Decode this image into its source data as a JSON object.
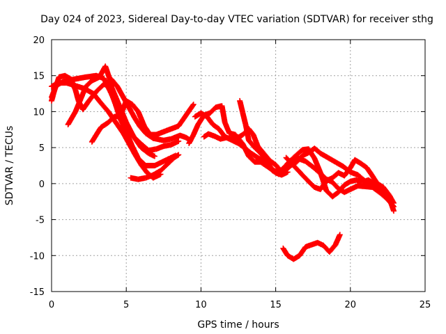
{
  "chart_data": {
    "type": "scatter",
    "title": "Day 024 of 2023, Sidereal Day-to-day VTEC variation (SDTVAR) for receiver sthg",
    "xlabel": "GPS time / hours",
    "ylabel": "SDTVAR / TECUs",
    "xlim": [
      0,
      25
    ],
    "ylim": [
      -15,
      20
    ],
    "xticks": [
      0,
      5,
      10,
      15,
      20,
      25
    ],
    "yticks": [
      -15,
      -10,
      -5,
      0,
      5,
      10,
      15,
      20
    ],
    "xtick_labels": [
      "0",
      "5",
      "10",
      "15",
      "20",
      "25"
    ],
    "ytick_labels": [
      "-15",
      "-10",
      "-5",
      "0",
      "5",
      "10",
      "15",
      "20"
    ],
    "grid": true,
    "marker": "+",
    "color": "#ff0000",
    "series": [
      {
        "name": "track-1",
        "points": [
          [
            0,
            12
          ],
          [
            0.3,
            13.6
          ],
          [
            0.8,
            14.2
          ],
          [
            1.5,
            14.5
          ],
          [
            2.3,
            14.8
          ],
          [
            3,
            15
          ],
          [
            3.5,
            14.6
          ],
          [
            4,
            12.5
          ],
          [
            4.5,
            10
          ],
          [
            5,
            8
          ],
          [
            5.5,
            6.5
          ],
          [
            6,
            5.5
          ],
          [
            6.5,
            4.6
          ],
          [
            7,
            4.8
          ],
          [
            7.5,
            5.2
          ],
          [
            8,
            5.4
          ],
          [
            8.5,
            5.9
          ]
        ]
      },
      {
        "name": "track-2",
        "points": [
          [
            0,
            11.5
          ],
          [
            0.2,
            13
          ],
          [
            0.5,
            14.8
          ],
          [
            0.9,
            15
          ],
          [
            1.3,
            14.5
          ],
          [
            1.6,
            13
          ],
          [
            1.8,
            11.5
          ],
          [
            2.1,
            10.3
          ],
          [
            2.5,
            11.5
          ],
          [
            3,
            12.8
          ],
          [
            3.5,
            13.8
          ],
          [
            4,
            13.5
          ],
          [
            4.5,
            11
          ],
          [
            5,
            8.5
          ],
          [
            5.5,
            6.5
          ],
          [
            6,
            5
          ],
          [
            6.5,
            4.2
          ],
          [
            6.9,
            3.8
          ]
        ]
      },
      {
        "name": "track-3",
        "points": [
          [
            1.1,
            8.2
          ],
          [
            1.6,
            10
          ],
          [
            2,
            12
          ],
          [
            2.3,
            13.5
          ],
          [
            2.7,
            14.3
          ],
          [
            3.2,
            14.8
          ],
          [
            3.6,
            16.3
          ],
          [
            3.9,
            14.5
          ],
          [
            4.2,
            11.5
          ],
          [
            4.6,
            9
          ],
          [
            5,
            7.2
          ],
          [
            5.4,
            5.2
          ],
          [
            5.8,
            3.5
          ],
          [
            6.3,
            2.5
          ],
          [
            6.9,
            2.5
          ],
          [
            7.4,
            3
          ],
          [
            7.9,
            3.5
          ],
          [
            8.3,
            3.9
          ]
        ]
      },
      {
        "name": "track-4",
        "points": [
          [
            0,
            13.5
          ],
          [
            0.5,
            14
          ],
          [
            1,
            14
          ],
          [
            1.6,
            13.6
          ],
          [
            2.2,
            13.2
          ],
          [
            2.8,
            12.5
          ],
          [
            3.3,
            11.2
          ],
          [
            3.8,
            10
          ],
          [
            4.3,
            8.5
          ],
          [
            4.8,
            7
          ],
          [
            5.2,
            5.5
          ],
          [
            5.6,
            4
          ],
          [
            6,
            2.6
          ],
          [
            6.4,
            1.5
          ],
          [
            6.8,
            0.8
          ],
          [
            7.3,
            1.3
          ]
        ]
      },
      {
        "name": "track-5",
        "points": [
          [
            2.7,
            5.8
          ],
          [
            3,
            6.8
          ],
          [
            3.3,
            7.8
          ],
          [
            3.8,
            8.5
          ],
          [
            4.2,
            9.3
          ],
          [
            4.6,
            9.4
          ],
          [
            5,
            11.5
          ],
          [
            5.4,
            11
          ],
          [
            5.8,
            10
          ],
          [
            6.2,
            8
          ],
          [
            6.6,
            6.8
          ],
          [
            7,
            6.8
          ],
          [
            7.5,
            7.2
          ],
          [
            8,
            7.6
          ],
          [
            8.5,
            8
          ],
          [
            9,
            9.5
          ],
          [
            9.5,
            11
          ]
        ]
      },
      {
        "name": "track-6",
        "points": [
          [
            4,
            14.5
          ],
          [
            4.4,
            13.5
          ],
          [
            4.8,
            12
          ],
          [
            5.2,
            10.5
          ],
          [
            5.6,
            9
          ],
          [
            5.9,
            8
          ],
          [
            6.3,
            7
          ],
          [
            6.8,
            6.3
          ],
          [
            7.5,
            6
          ],
          [
            8,
            6.2
          ],
          [
            8.6,
            6.7
          ],
          [
            9,
            6.4
          ],
          [
            9.3,
            6
          ]
        ]
      },
      {
        "name": "track-7",
        "points": [
          [
            5.3,
            0.8
          ],
          [
            5.8,
            0.6
          ],
          [
            6.3,
            0.8
          ],
          [
            6.8,
            1.2
          ],
          [
            7.3,
            1.8
          ],
          [
            7.8,
            2.8
          ],
          [
            8.2,
            3.6
          ],
          [
            8.5,
            4
          ]
        ]
      },
      {
        "name": "track-8",
        "points": [
          [
            9.2,
            5.6
          ],
          [
            9.5,
            6.8
          ],
          [
            9.8,
            8.2
          ],
          [
            10.2,
            9.5
          ],
          [
            10.6,
            9.8
          ],
          [
            11,
            10.6
          ],
          [
            11.4,
            10.8
          ],
          [
            11.6,
            8.5
          ],
          [
            11.9,
            7
          ],
          [
            12.3,
            6.8
          ],
          [
            12.8,
            5.5
          ],
          [
            13.2,
            3.8
          ],
          [
            13.6,
            3
          ],
          [
            14,
            3
          ],
          [
            14.5,
            2.3
          ],
          [
            15,
            1.5
          ],
          [
            15.4,
            1.2
          ],
          [
            15.8,
            1.6
          ]
        ]
      },
      {
        "name": "track-9",
        "points": [
          [
            9.6,
            9.3
          ],
          [
            10,
            9.8
          ],
          [
            10.4,
            9.3
          ],
          [
            10.8,
            8.2
          ],
          [
            11.2,
            7.6
          ],
          [
            11.6,
            6.5
          ],
          [
            12,
            6.2
          ],
          [
            12.4,
            6.3
          ],
          [
            12.8,
            6.8
          ],
          [
            13.2,
            7.6
          ],
          [
            13.5,
            6.8
          ],
          [
            13.8,
            5.2
          ],
          [
            14.2,
            4.2
          ],
          [
            14.6,
            3.2
          ],
          [
            15,
            2.6
          ],
          [
            15.4,
            1.6
          ],
          [
            15.8,
            2.8
          ],
          [
            16.3,
            3.8
          ],
          [
            16.8,
            4.7
          ],
          [
            17.2,
            4.8
          ],
          [
            17.6,
            3.5
          ],
          [
            18,
            1.5
          ],
          [
            18.4,
            -1
          ],
          [
            18.8,
            -1.8
          ],
          [
            19.2,
            -1.2
          ],
          [
            19.6,
            -0.2
          ],
          [
            20,
            0.3
          ],
          [
            20.4,
            0.5
          ],
          [
            20.8,
            0.2
          ],
          [
            21.2,
            0.5
          ],
          [
            21.6,
            0
          ],
          [
            22,
            -0.8
          ],
          [
            22.5,
            -1.9
          ],
          [
            22.8,
            -3
          ]
        ]
      },
      {
        "name": "track-10",
        "points": [
          [
            10.2,
            6.5
          ],
          [
            10.5,
            6.9
          ],
          [
            10.9,
            6.6
          ],
          [
            11.3,
            6.2
          ],
          [
            11.7,
            6.4
          ],
          [
            12.1,
            6
          ],
          [
            12.5,
            5.6
          ],
          [
            12.9,
            5
          ],
          [
            13.3,
            4.3
          ],
          [
            13.8,
            3.6
          ],
          [
            14.2,
            3.1
          ],
          [
            14.5,
            2.4
          ],
          [
            14.9,
            1.8
          ],
          [
            15.2,
            1.3
          ],
          [
            15.6,
            1.7
          ],
          [
            16,
            2.5
          ],
          [
            16.4,
            3
          ],
          [
            16.8,
            3.9
          ],
          [
            17.2,
            4.3
          ],
          [
            17.6,
            4.9
          ],
          [
            18,
            4.2
          ],
          [
            18.5,
            3.6
          ],
          [
            19,
            3
          ],
          [
            19.5,
            2.4
          ],
          [
            20,
            1.6
          ],
          [
            20.5,
            1.2
          ],
          [
            20.9,
            0.5
          ],
          [
            21.3,
            -0.2
          ],
          [
            21.7,
            -0.8
          ],
          [
            22.1,
            -1.2
          ],
          [
            22.6,
            -2
          ],
          [
            22.9,
            -3.8
          ]
        ]
      },
      {
        "name": "track-11",
        "points": [
          [
            12.6,
            11.5
          ],
          [
            12.8,
            9.8
          ],
          [
            13,
            8.1
          ],
          [
            13.2,
            6
          ],
          [
            13.6,
            5
          ],
          [
            14,
            4.2
          ],
          [
            14.4,
            3.2
          ],
          [
            14.8,
            1.8
          ],
          [
            15.2,
            1.6
          ],
          [
            15.6,
            2.3
          ],
          [
            16,
            3.2
          ],
          [
            16.5,
            3.5
          ],
          [
            17,
            3.1
          ],
          [
            17.5,
            2.3
          ],
          [
            18,
            1.4
          ],
          [
            18.4,
            0.6
          ],
          [
            18.8,
            0.2
          ],
          [
            19.2,
            -0.7
          ],
          [
            19.6,
            -1.2
          ],
          [
            20,
            -0.8
          ],
          [
            20.5,
            -0.3
          ],
          [
            21,
            -0.4
          ],
          [
            21.5,
            -0.5
          ],
          [
            22,
            -1.3
          ],
          [
            22.5,
            -2.2
          ],
          [
            22.9,
            -3.2
          ]
        ]
      },
      {
        "name": "track-12",
        "points": [
          [
            15.7,
            3.6
          ],
          [
            16.2,
            2.5
          ],
          [
            16.7,
            1.4
          ],
          [
            17.2,
            0.3
          ],
          [
            17.6,
            -0.5
          ],
          [
            18,
            -0.8
          ],
          [
            18.4,
            0.4
          ],
          [
            18.8,
            0.8
          ],
          [
            19.2,
            1.5
          ],
          [
            19.6,
            1.1
          ],
          [
            20,
            2.2
          ],
          [
            20.3,
            3.3
          ],
          [
            20.7,
            2.8
          ],
          [
            21.1,
            2.2
          ],
          [
            21.4,
            1.3
          ],
          [
            21.8,
            0
          ],
          [
            22.2,
            -0.5
          ],
          [
            22.6,
            -1.6
          ],
          [
            22.9,
            -2.7
          ]
        ]
      },
      {
        "name": "track-13",
        "points": [
          [
            15.5,
            -9
          ],
          [
            15.8,
            -10
          ],
          [
            16.2,
            -10.5
          ],
          [
            16.6,
            -10
          ],
          [
            17,
            -8.8
          ],
          [
            17.4,
            -8.5
          ],
          [
            17.8,
            -8.2
          ],
          [
            18.2,
            -8.6
          ],
          [
            18.6,
            -9.5
          ],
          [
            19,
            -8.5
          ],
          [
            19.3,
            -7.1
          ]
        ]
      }
    ]
  }
}
